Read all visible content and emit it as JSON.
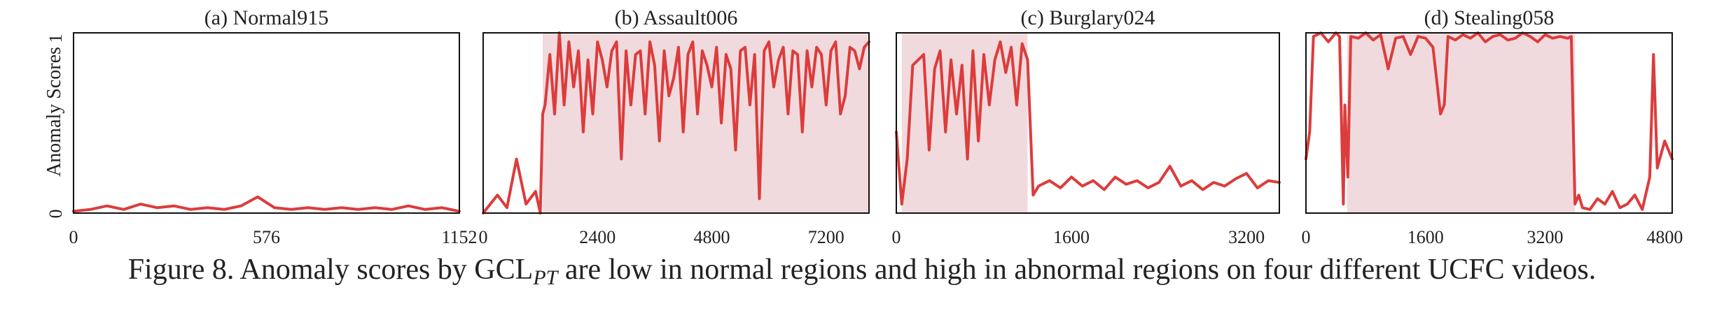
{
  "figure": {
    "ylabel": "Anomaly Scores",
    "y_ticks": [
      "0",
      "1"
    ],
    "caption": {
      "prefix": "Figure 8. Anomaly scores by GCL",
      "subscript": "PT",
      "suffix": " are low in normal regions and high in abnormal regions on four different UCFC videos."
    }
  },
  "colors": {
    "line": "#dc3c3c",
    "abnormal_region": "#f1dadd",
    "frame": "#111111"
  },
  "chart_data": [
    {
      "type": "line",
      "title": "(a) Normal915",
      "xlim": [
        0,
        1152
      ],
      "ylim": [
        0,
        1
      ],
      "x_ticks": [
        0,
        576,
        1152
      ],
      "abnormal_regions": [],
      "series": [
        {
          "x": [
            0,
            50,
            100,
            150,
            200,
            250,
            300,
            350,
            400,
            450,
            500,
            550,
            600,
            650,
            700,
            750,
            800,
            850,
            900,
            950,
            1000,
            1050,
            1100,
            1152
          ],
          "values": [
            0.01,
            0.02,
            0.04,
            0.02,
            0.05,
            0.03,
            0.04,
            0.02,
            0.03,
            0.02,
            0.04,
            0.09,
            0.03,
            0.02,
            0.03,
            0.02,
            0.03,
            0.02,
            0.03,
            0.02,
            0.04,
            0.02,
            0.03,
            0.01
          ]
        }
      ]
    },
    {
      "type": "line",
      "title": "(b) Assault006",
      "xlim": [
        0,
        8100
      ],
      "ylim": [
        0,
        1
      ],
      "x_ticks": [
        0,
        2400,
        4800,
        7200
      ],
      "abnormal_regions": [
        [
          1250,
          8100
        ]
      ],
      "series": [
        {
          "x": [
            0,
            300,
            500,
            700,
            900,
            1100,
            1200,
            1250,
            1300,
            1400,
            1500,
            1600,
            1700,
            1800,
            1900,
            2000,
            2100,
            2200,
            2300,
            2400,
            2500,
            2600,
            2700,
            2800,
            2900,
            3000,
            3100,
            3200,
            3300,
            3400,
            3500,
            3600,
            3700,
            3800,
            3900,
            4000,
            4100,
            4200,
            4300,
            4400,
            4500,
            4600,
            4700,
            4800,
            4900,
            5000,
            5100,
            5200,
            5300,
            5400,
            5500,
            5600,
            5700,
            5800,
            5900,
            6000,
            6100,
            6200,
            6300,
            6400,
            6500,
            6600,
            6700,
            6800,
            6900,
            7000,
            7100,
            7200,
            7300,
            7400,
            7500,
            7600,
            7700,
            7800,
            7900,
            8000,
            8100
          ],
          "values": [
            0.0,
            0.1,
            0.03,
            0.3,
            0.05,
            0.12,
            0.0,
            0.55,
            0.6,
            0.88,
            0.55,
            1.0,
            0.6,
            0.95,
            0.7,
            0.9,
            0.45,
            0.85,
            0.55,
            0.95,
            0.85,
            0.7,
            0.9,
            0.95,
            0.3,
            0.9,
            0.6,
            0.88,
            0.9,
            0.55,
            0.95,
            0.82,
            0.4,
            0.9,
            0.65,
            0.75,
            0.92,
            0.45,
            0.88,
            0.95,
            0.55,
            0.9,
            0.82,
            0.7,
            0.92,
            0.5,
            0.88,
            0.8,
            0.35,
            0.9,
            0.92,
            0.6,
            0.88,
            0.08,
            0.9,
            0.95,
            0.7,
            0.85,
            0.92,
            0.55,
            0.9,
            0.88,
            0.45,
            0.9,
            0.7,
            0.92,
            0.88,
            0.6,
            0.9,
            0.95,
            0.55,
            0.65,
            0.92,
            0.9,
            0.8,
            0.92,
            0.95
          ]
        }
      ]
    },
    {
      "type": "line",
      "title": "(c) Burglary024",
      "xlim": [
        0,
        3500
      ],
      "ylim": [
        0,
        1
      ],
      "x_ticks": [
        0,
        1600,
        3200
      ],
      "abnormal_regions": [
        [
          50,
          1200
        ]
      ],
      "series": [
        {
          "x": [
            0,
            50,
            100,
            150,
            200,
            250,
            300,
            350,
            400,
            450,
            500,
            550,
            600,
            650,
            700,
            750,
            800,
            850,
            900,
            950,
            1000,
            1050,
            1100,
            1150,
            1200,
            1250,
            1300,
            1400,
            1500,
            1600,
            1700,
            1800,
            1900,
            2000,
            2100,
            2200,
            2300,
            2400,
            2500,
            2600,
            2700,
            2800,
            2900,
            3000,
            3100,
            3200,
            3300,
            3400,
            3500
          ],
          "values": [
            0.45,
            0.05,
            0.3,
            0.82,
            0.85,
            0.88,
            0.35,
            0.8,
            0.9,
            0.45,
            0.85,
            0.55,
            0.82,
            0.3,
            0.9,
            0.4,
            0.88,
            0.6,
            0.85,
            0.95,
            0.78,
            0.92,
            0.6,
            0.94,
            0.85,
            0.1,
            0.15,
            0.18,
            0.14,
            0.2,
            0.15,
            0.18,
            0.13,
            0.2,
            0.16,
            0.18,
            0.14,
            0.17,
            0.26,
            0.15,
            0.18,
            0.13,
            0.17,
            0.15,
            0.19,
            0.22,
            0.14,
            0.18,
            0.17
          ]
        }
      ]
    },
    {
      "type": "line",
      "title": "(d) Stealing058",
      "xlim": [
        0,
        4900
      ],
      "ylim": [
        0,
        1
      ],
      "x_ticks": [
        0,
        1600,
        3200,
        4800
      ],
      "abnormal_regions": [
        [
          550,
          3600
        ]
      ],
      "series": [
        {
          "x": [
            0,
            50,
            100,
            200,
            300,
            400,
            450,
            500,
            520,
            560,
            600,
            700,
            800,
            900,
            1000,
            1100,
            1200,
            1300,
            1400,
            1500,
            1600,
            1700,
            1800,
            1850,
            1900,
            2000,
            2100,
            2200,
            2300,
            2400,
            2500,
            2600,
            2700,
            2800,
            2900,
            3000,
            3100,
            3200,
            3300,
            3400,
            3500,
            3550,
            3600,
            3650,
            3700,
            3800,
            3900,
            4000,
            4100,
            4200,
            4300,
            4400,
            4500,
            4600,
            4650,
            4700,
            4800,
            4900
          ],
          "values": [
            0.3,
            0.45,
            0.98,
            1.0,
            0.95,
            1.0,
            0.98,
            0.05,
            0.6,
            0.2,
            0.98,
            0.97,
            1.0,
            0.96,
            0.99,
            0.8,
            0.97,
            0.98,
            0.88,
            0.98,
            0.97,
            0.92,
            0.55,
            0.6,
            0.98,
            0.96,
            0.99,
            0.97,
            1.0,
            0.95,
            0.98,
            0.99,
            0.96,
            0.97,
            1.0,
            0.98,
            0.95,
            0.99,
            0.97,
            0.98,
            0.97,
            0.98,
            0.05,
            0.1,
            0.03,
            0.02,
            0.08,
            0.05,
            0.12,
            0.03,
            0.05,
            0.1,
            0.02,
            0.2,
            0.88,
            0.25,
            0.4,
            0.3
          ]
        }
      ]
    }
  ]
}
